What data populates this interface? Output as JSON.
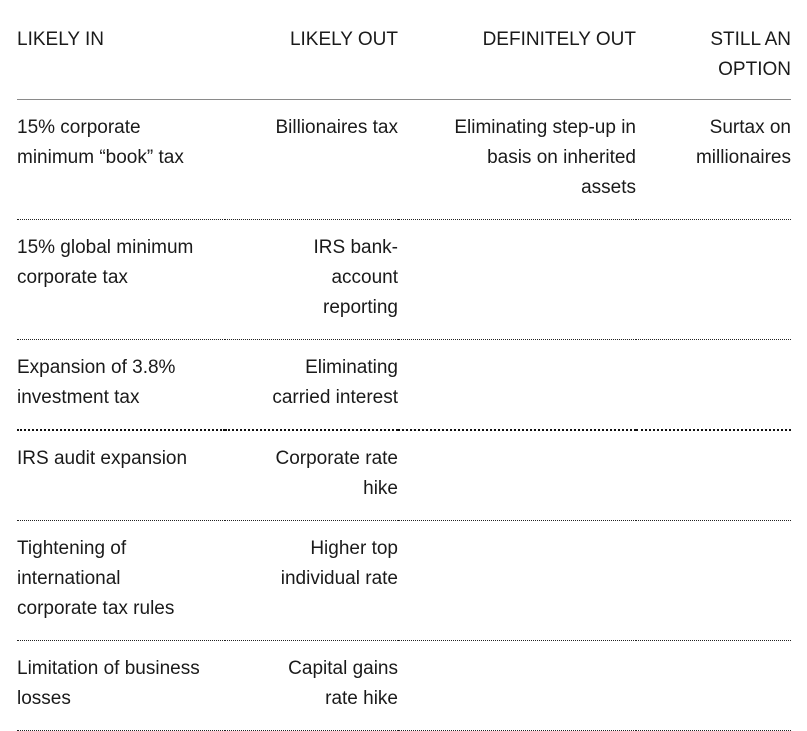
{
  "colors": {
    "background": "#ffffff",
    "text": "#1a1a1a",
    "header_rule": "#8a8a8a",
    "row_rule_dotted": "#222222",
    "strong_row_rule_dotted": "#111111"
  },
  "table": {
    "headers": [
      "LIKELY IN",
      "LIKELY OUT",
      "DEFINITELY OUT",
      "STILL AN\nOPTION"
    ],
    "rows": [
      {
        "cells": [
          "15% corporate\nminimum “book” tax",
          "Billionaires tax",
          "Eliminating step-up in\nbasis on inherited\nassets",
          "Surtax on\nmillionaires"
        ],
        "divider": "normal"
      },
      {
        "cells": [
          "15% global minimum\ncorporate tax",
          "IRS bank-\naccount\nreporting",
          "",
          ""
        ],
        "divider": "normal"
      },
      {
        "cells": [
          "Expansion of 3.8%\ninvestment tax",
          "Eliminating\ncarried interest",
          "",
          ""
        ],
        "divider": "strong"
      },
      {
        "cells": [
          "IRS audit expansion",
          "Corporate rate\nhike",
          "",
          ""
        ],
        "divider": "normal"
      },
      {
        "cells": [
          "Tightening of\ninternational\ncorporate tax rules",
          "Higher top\nindividual rate",
          "",
          ""
        ],
        "divider": "normal"
      },
      {
        "cells": [
          "Limitation of business\nlosses",
          "Capital gains\nrate hike",
          "",
          ""
        ],
        "divider": "normal"
      }
    ]
  },
  "chart_data": {
    "type": "table",
    "columns": [
      "LIKELY IN",
      "LIKELY OUT",
      "DEFINITELY OUT",
      "STILL AN OPTION"
    ],
    "rows": [
      [
        "15% corporate minimum “book” tax",
        "Billionaires tax",
        "Eliminating step-up in basis on inherited assets",
        "Surtax on millionaires"
      ],
      [
        "15% global minimum corporate tax",
        "IRS bank-account reporting",
        "",
        ""
      ],
      [
        "Expansion of 3.8% investment tax",
        "Eliminating carried interest",
        "",
        ""
      ],
      [
        "IRS audit expansion",
        "Corporate rate hike",
        "",
        ""
      ],
      [
        "Tightening of international corporate tax rules",
        "Higher top individual rate",
        "",
        ""
      ],
      [
        "Limitation of business losses",
        "Capital gains rate hike",
        "",
        ""
      ]
    ]
  }
}
